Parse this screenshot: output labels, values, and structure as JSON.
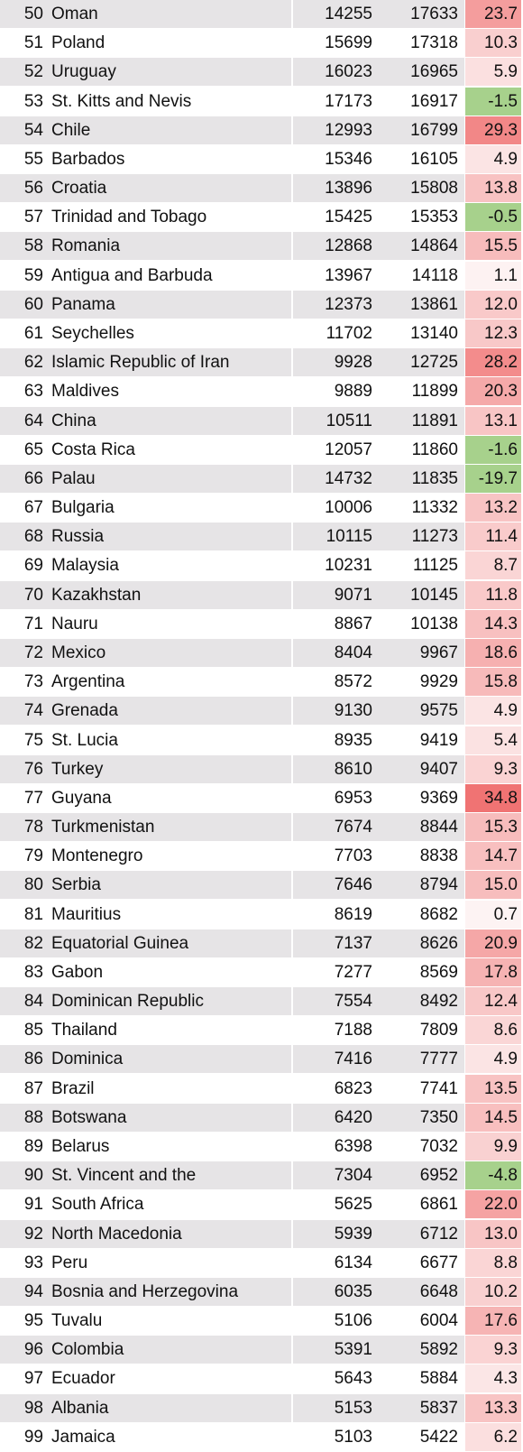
{
  "rows": [
    {
      "rank": "50",
      "country": "Oman",
      "v1": "14255",
      "v2": "17633",
      "change": "23.7"
    },
    {
      "rank": "51",
      "country": "Poland",
      "v1": "15699",
      "v2": "17318",
      "change": "10.3"
    },
    {
      "rank": "52",
      "country": "Uruguay",
      "v1": "16023",
      "v2": "16965",
      "change": "5.9"
    },
    {
      "rank": "53",
      "country": "St. Kitts and Nevis",
      "v1": "17173",
      "v2": "16917",
      "change": "-1.5"
    },
    {
      "rank": "54",
      "country": "Chile",
      "v1": "12993",
      "v2": "16799",
      "change": "29.3"
    },
    {
      "rank": "55",
      "country": "Barbados",
      "v1": "15346",
      "v2": "16105",
      "change": "4.9"
    },
    {
      "rank": "56",
      "country": "Croatia",
      "v1": "13896",
      "v2": "15808",
      "change": "13.8"
    },
    {
      "rank": "57",
      "country": "Trinidad and Tobago",
      "v1": "15425",
      "v2": "15353",
      "change": "-0.5"
    },
    {
      "rank": "58",
      "country": "Romania",
      "v1": "12868",
      "v2": "14864",
      "change": "15.5"
    },
    {
      "rank": "59",
      "country": "Antigua and Barbuda",
      "v1": "13967",
      "v2": "14118",
      "change": "1.1"
    },
    {
      "rank": "60",
      "country": "Panama",
      "v1": "12373",
      "v2": "13861",
      "change": "12.0"
    },
    {
      "rank": "61",
      "country": "Seychelles",
      "v1": "11702",
      "v2": "13140",
      "change": "12.3"
    },
    {
      "rank": "62",
      "country": "Islamic Republic of Iran",
      "v1": "9928",
      "v2": "12725",
      "change": "28.2"
    },
    {
      "rank": "63",
      "country": "Maldives",
      "v1": "9889",
      "v2": "11899",
      "change": "20.3"
    },
    {
      "rank": "64",
      "country": "China",
      "v1": "10511",
      "v2": "11891",
      "change": "13.1"
    },
    {
      "rank": "65",
      "country": "Costa Rica",
      "v1": "12057",
      "v2": "11860",
      "change": "-1.6"
    },
    {
      "rank": "66",
      "country": "Palau",
      "v1": "14732",
      "v2": "11835",
      "change": "-19.7"
    },
    {
      "rank": "67",
      "country": "Bulgaria",
      "v1": "10006",
      "v2": "11332",
      "change": "13.2"
    },
    {
      "rank": "68",
      "country": "Russia",
      "v1": "10115",
      "v2": "11273",
      "change": "11.4"
    },
    {
      "rank": "69",
      "country": "Malaysia",
      "v1": "10231",
      "v2": "11125",
      "change": "8.7"
    },
    {
      "rank": "70",
      "country": "Kazakhstan",
      "v1": "9071",
      "v2": "10145",
      "change": "11.8"
    },
    {
      "rank": "71",
      "country": "Nauru",
      "v1": "8867",
      "v2": "10138",
      "change": "14.3"
    },
    {
      "rank": "72",
      "country": "Mexico",
      "v1": "8404",
      "v2": "9967",
      "change": "18.6"
    },
    {
      "rank": "73",
      "country": "Argentina",
      "v1": "8572",
      "v2": "9929",
      "change": "15.8"
    },
    {
      "rank": "74",
      "country": "Grenada",
      "v1": "9130",
      "v2": "9575",
      "change": "4.9"
    },
    {
      "rank": "75",
      "country": "St. Lucia",
      "v1": "8935",
      "v2": "9419",
      "change": "5.4"
    },
    {
      "rank": "76",
      "country": "Turkey",
      "v1": "8610",
      "v2": "9407",
      "change": "9.3"
    },
    {
      "rank": "77",
      "country": "Guyana",
      "v1": "6953",
      "v2": "9369",
      "change": "34.8"
    },
    {
      "rank": "78",
      "country": "Turkmenistan",
      "v1": "7674",
      "v2": "8844",
      "change": "15.3"
    },
    {
      "rank": "79",
      "country": "Montenegro",
      "v1": "7703",
      "v2": "8838",
      "change": "14.7"
    },
    {
      "rank": "80",
      "country": "Serbia",
      "v1": "7646",
      "v2": "8794",
      "change": "15.0"
    },
    {
      "rank": "81",
      "country": "Mauritius",
      "v1": "8619",
      "v2": "8682",
      "change": "0.7"
    },
    {
      "rank": "82",
      "country": "Equatorial Guinea",
      "v1": "7137",
      "v2": "8626",
      "change": "20.9"
    },
    {
      "rank": "83",
      "country": "Gabon",
      "v1": "7277",
      "v2": "8569",
      "change": "17.8"
    },
    {
      "rank": "84",
      "country": "Dominican Republic",
      "v1": "7554",
      "v2": "8492",
      "change": "12.4"
    },
    {
      "rank": "85",
      "country": "Thailand",
      "v1": "7188",
      "v2": "7809",
      "change": "8.6"
    },
    {
      "rank": "86",
      "country": "Dominica",
      "v1": "7416",
      "v2": "7777",
      "change": "4.9"
    },
    {
      "rank": "87",
      "country": "Brazil",
      "v1": "6823",
      "v2": "7741",
      "change": "13.5"
    },
    {
      "rank": "88",
      "country": "Botswana",
      "v1": "6420",
      "v2": "7350",
      "change": "14.5"
    },
    {
      "rank": "89",
      "country": "Belarus",
      "v1": "6398",
      "v2": "7032",
      "change": "9.9"
    },
    {
      "rank": "90",
      "country": "St. Vincent and the",
      "v1": "7304",
      "v2": "6952",
      "change": "-4.8"
    },
    {
      "rank": "91",
      "country": "South Africa",
      "v1": "5625",
      "v2": "6861",
      "change": "22.0"
    },
    {
      "rank": "92",
      "country": "North Macedonia",
      "v1": "5939",
      "v2": "6712",
      "change": "13.0"
    },
    {
      "rank": "93",
      "country": "Peru",
      "v1": "6134",
      "v2": "6677",
      "change": "8.8"
    },
    {
      "rank": "94",
      "country": "Bosnia and Herzegovina",
      "v1": "6035",
      "v2": "6648",
      "change": "10.2"
    },
    {
      "rank": "95",
      "country": "Tuvalu",
      "v1": "5106",
      "v2": "6004",
      "change": "17.6"
    },
    {
      "rank": "96",
      "country": "Colombia",
      "v1": "5391",
      "v2": "5892",
      "change": "9.3"
    },
    {
      "rank": "97",
      "country": "Ecuador",
      "v1": "5643",
      "v2": "5884",
      "change": "4.3"
    },
    {
      "rank": "98",
      "country": "Albania",
      "v1": "5153",
      "v2": "5837",
      "change": "13.3"
    },
    {
      "rank": "99",
      "country": "Jamaica",
      "v1": "5103",
      "v2": "5422",
      "change": "6.2"
    }
  ],
  "colors": {
    "stripe": "#e6e4e6",
    "positive_max": "#f07272",
    "positive_min": "#fdf6f6",
    "negative": "#a7d18c",
    "text": "#111111"
  }
}
